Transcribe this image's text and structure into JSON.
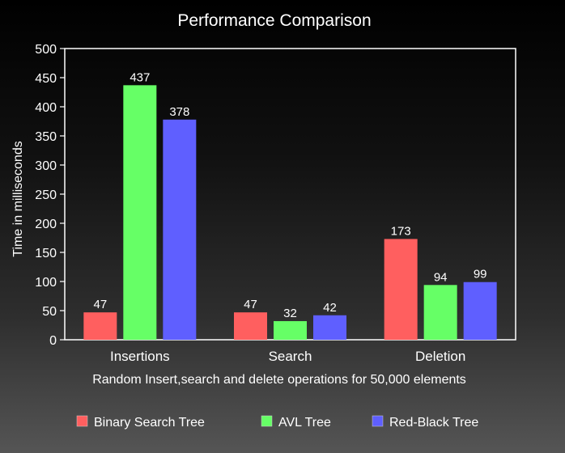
{
  "chart_data": {
    "type": "bar",
    "title": "Performance Comparison",
    "xlabel": "Random Insert,search and delete operations for 50,000 elements",
    "ylabel": "Time in milliseconds",
    "categories": [
      "Insertions",
      "Search",
      "Deletion"
    ],
    "ylim": [
      0,
      500
    ],
    "yticks": [
      0,
      50,
      100,
      150,
      200,
      250,
      300,
      350,
      400,
      450,
      500
    ],
    "grid": false,
    "legend_position": "bottom",
    "series": [
      {
        "name": "Binary Search Tree",
        "values": [
          47,
          47,
          173
        ],
        "color": "#ff5f5f"
      },
      {
        "name": "AVL Tree",
        "values": [
          437,
          32,
          94
        ],
        "color": "#66ff66"
      },
      {
        "name": "Red-Black Tree",
        "values": [
          378,
          42,
          99
        ],
        "color": "#5f5fff"
      }
    ],
    "colors": {
      "plot_border": "#ffffff",
      "text": "#ffffff"
    }
  }
}
